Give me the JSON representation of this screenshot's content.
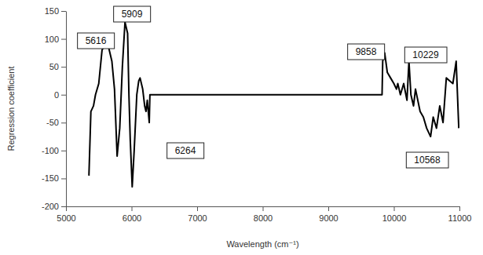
{
  "chart_data": {
    "type": "line",
    "x_label": "Wavelength (cm⁻¹)",
    "y_label": "Regression coefficient",
    "color": "#000000",
    "x": [
      5350,
      5380,
      5420,
      5450,
      5500,
      5550,
      5600,
      5650,
      5700,
      5740,
      5770,
      5780,
      5820,
      5860,
      5900,
      5940,
      5960,
      5980,
      6010,
      6040,
      6080,
      6110,
      6130,
      6170,
      6200,
      6220,
      6240,
      6270,
      6280,
      9820,
      9830,
      9860,
      9900,
      9950,
      10000,
      10040,
      10060,
      10100,
      10150,
      10200,
      10230,
      10260,
      10300,
      10330,
      10400,
      10450,
      10500,
      10560,
      10600,
      10650,
      10700,
      10750,
      10800,
      10850,
      10900,
      10950,
      10990
    ],
    "values": [
      -145,
      -30,
      -20,
      0,
      20,
      80,
      90,
      85,
      60,
      10,
      -80,
      -110,
      -60,
      50,
      130,
      110,
      0,
      -80,
      -165,
      -100,
      0,
      25,
      30,
      10,
      -20,
      -30,
      -10,
      -50,
      0,
      0,
      60,
      75,
      40,
      30,
      20,
      10,
      20,
      0,
      20,
      -10,
      60,
      0,
      -20,
      10,
      -30,
      -40,
      -60,
      -75,
      -40,
      -60,
      -20,
      -50,
      30,
      25,
      20,
      60,
      -60
    ],
    "xlim": [
      5000,
      11000
    ],
    "xticks": [
      5000,
      6000,
      7000,
      8000,
      9000,
      10000,
      11000
    ],
    "ylim": [
      -200,
      150
    ],
    "yticks": [
      -200,
      -150,
      -100,
      -50,
      0,
      50,
      100,
      150
    ],
    "grid": false,
    "annotations": [
      "5616",
      "5909",
      "6264",
      "9858",
      "10229",
      "10568"
    ]
  }
}
